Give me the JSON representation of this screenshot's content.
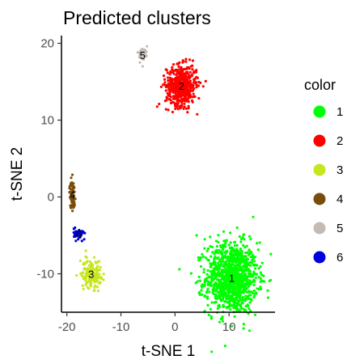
{
  "chart_data": {
    "type": "scatter",
    "title": "Predicted clusters",
    "xlabel": "t-SNE 1",
    "ylabel": "t-SNE 2",
    "xlim": [
      -21,
      18.5
    ],
    "ylim": [
      -15,
      21
    ],
    "xticks": [
      -20,
      -10,
      0,
      10
    ],
    "yticks": [
      -10,
      0,
      10,
      20
    ],
    "grid": false,
    "legend": {
      "title": "color",
      "placement": "right",
      "entries": [
        "1",
        "2",
        "3",
        "4",
        "5",
        "6"
      ]
    },
    "clusters": [
      {
        "label": "1",
        "color": "#00ff00",
        "center": [
          10.5,
          -10.5
        ],
        "spread": [
          2.4,
          2.3
        ],
        "n": 1100,
        "points": [
          [
            4,
            -5.0
          ],
          [
            5.5,
            -5.5
          ],
          [
            6.5,
            -5.2
          ],
          [
            9,
            -4.5
          ],
          [
            11.5,
            -4.0
          ],
          [
            12.8,
            -5.5
          ],
          [
            14.5,
            -8.0
          ],
          [
            16.5,
            -11.0
          ],
          [
            6,
            -13.0
          ],
          [
            5,
            -11.5
          ],
          [
            13,
            -13.5
          ],
          [
            15.5,
            -12.0
          ]
        ]
      },
      {
        "label": "2",
        "color": "#ff0000",
        "center": [
          1.2,
          14.5
        ],
        "spread": [
          1.4,
          1.3
        ],
        "n": 500,
        "points": [
          [
            -1.5,
            16.5
          ],
          [
            3.0,
            17.0
          ],
          [
            4.2,
            15.5
          ],
          [
            -1.8,
            12.5
          ],
          [
            2.5,
            11.8
          ],
          [
            0.5,
            17.3
          ]
        ]
      },
      {
        "label": "3",
        "color": "#c8e620",
        "center": [
          -15.5,
          -10.0
        ],
        "spread": [
          0.9,
          0.9
        ],
        "n": 160,
        "points": [
          [
            -17.5,
            -8.3
          ],
          [
            -16.5,
            -7.0
          ],
          [
            -13.8,
            -11.2
          ],
          [
            -14.0,
            -10.5
          ]
        ]
      },
      {
        "label": "4",
        "color": "#7a4c0a",
        "center": [
          -19.0,
          0.3
        ],
        "spread": [
          0.25,
          0.9
        ],
        "n": 60,
        "points": [
          [
            -19.2,
            2.5
          ],
          [
            -18.8,
            -1.4
          ]
        ]
      },
      {
        "label": "5",
        "color": "#c4bcb4",
        "center": [
          -6.0,
          18.5
        ],
        "spread": [
          0.45,
          0.5
        ],
        "n": 45,
        "points": [
          [
            -5.2,
            19.6
          ],
          [
            -6.5,
            17.5
          ],
          [
            -6.0,
            17.0
          ]
        ]
      },
      {
        "label": "6",
        "color": "#0000dd",
        "center": [
          -17.8,
          -4.8
        ],
        "spread": [
          0.45,
          0.35
        ],
        "n": 45,
        "points": [
          [
            -18.5,
            -4.0
          ],
          [
            -16.8,
            -5.5
          ]
        ]
      }
    ]
  }
}
